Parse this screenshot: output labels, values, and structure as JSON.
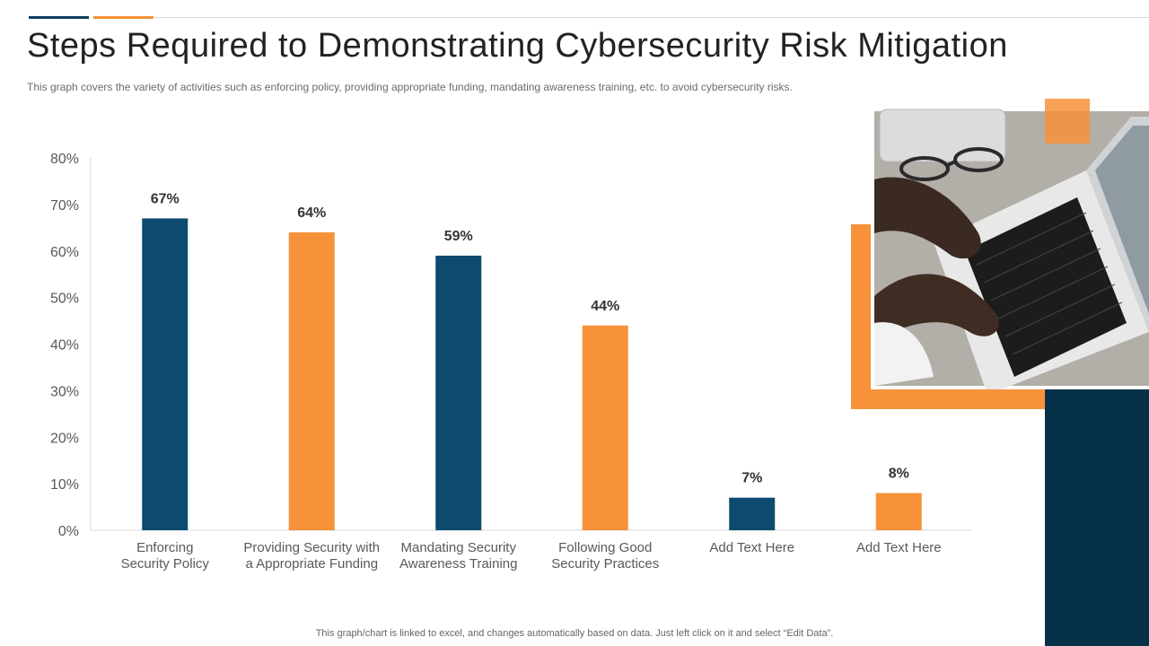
{
  "header": {
    "title": "Steps Required to Demonstrating Cybersecurity Risk Mitigation",
    "subtitle": "This graph covers the variety of activities such as enforcing policy, providing  appropriate funding, mandating awareness training, etc. to avoid cybersecurity risks."
  },
  "footer": {
    "note": "This graph/chart is linked to excel,  and changes automatically based on data. Just left click on it and select “Edit Data”."
  },
  "colors": {
    "navy": "#0d4a70",
    "orange": "#f7923a",
    "dark_panel": "#063149"
  },
  "image": {
    "icon": "laptop-typing-photo"
  },
  "chart_data": {
    "type": "bar",
    "title": "",
    "xlabel": "",
    "ylabel": "",
    "ylim": [
      0,
      80
    ],
    "yticks": [
      "0%",
      "10%",
      "20%",
      "30%",
      "40%",
      "50%",
      "60%",
      "70%",
      "80%"
    ],
    "categories": [
      [
        "Enforcing",
        "Security Policy"
      ],
      [
        "Providing Security with",
        "a Appropriate Funding"
      ],
      [
        "Mandating Security",
        "Awareness Training"
      ],
      [
        "Following Good",
        "Security Practices"
      ],
      [
        "Add Text Here"
      ],
      [
        "Add Text Here"
      ]
    ],
    "values": [
      67,
      64,
      59,
      44,
      7,
      8
    ],
    "labels": [
      "67%",
      "64%",
      "59%",
      "44%",
      "7%",
      "8%"
    ],
    "bar_colors": [
      "navy",
      "orange",
      "navy",
      "orange",
      "navy",
      "orange"
    ],
    "grid": false
  }
}
